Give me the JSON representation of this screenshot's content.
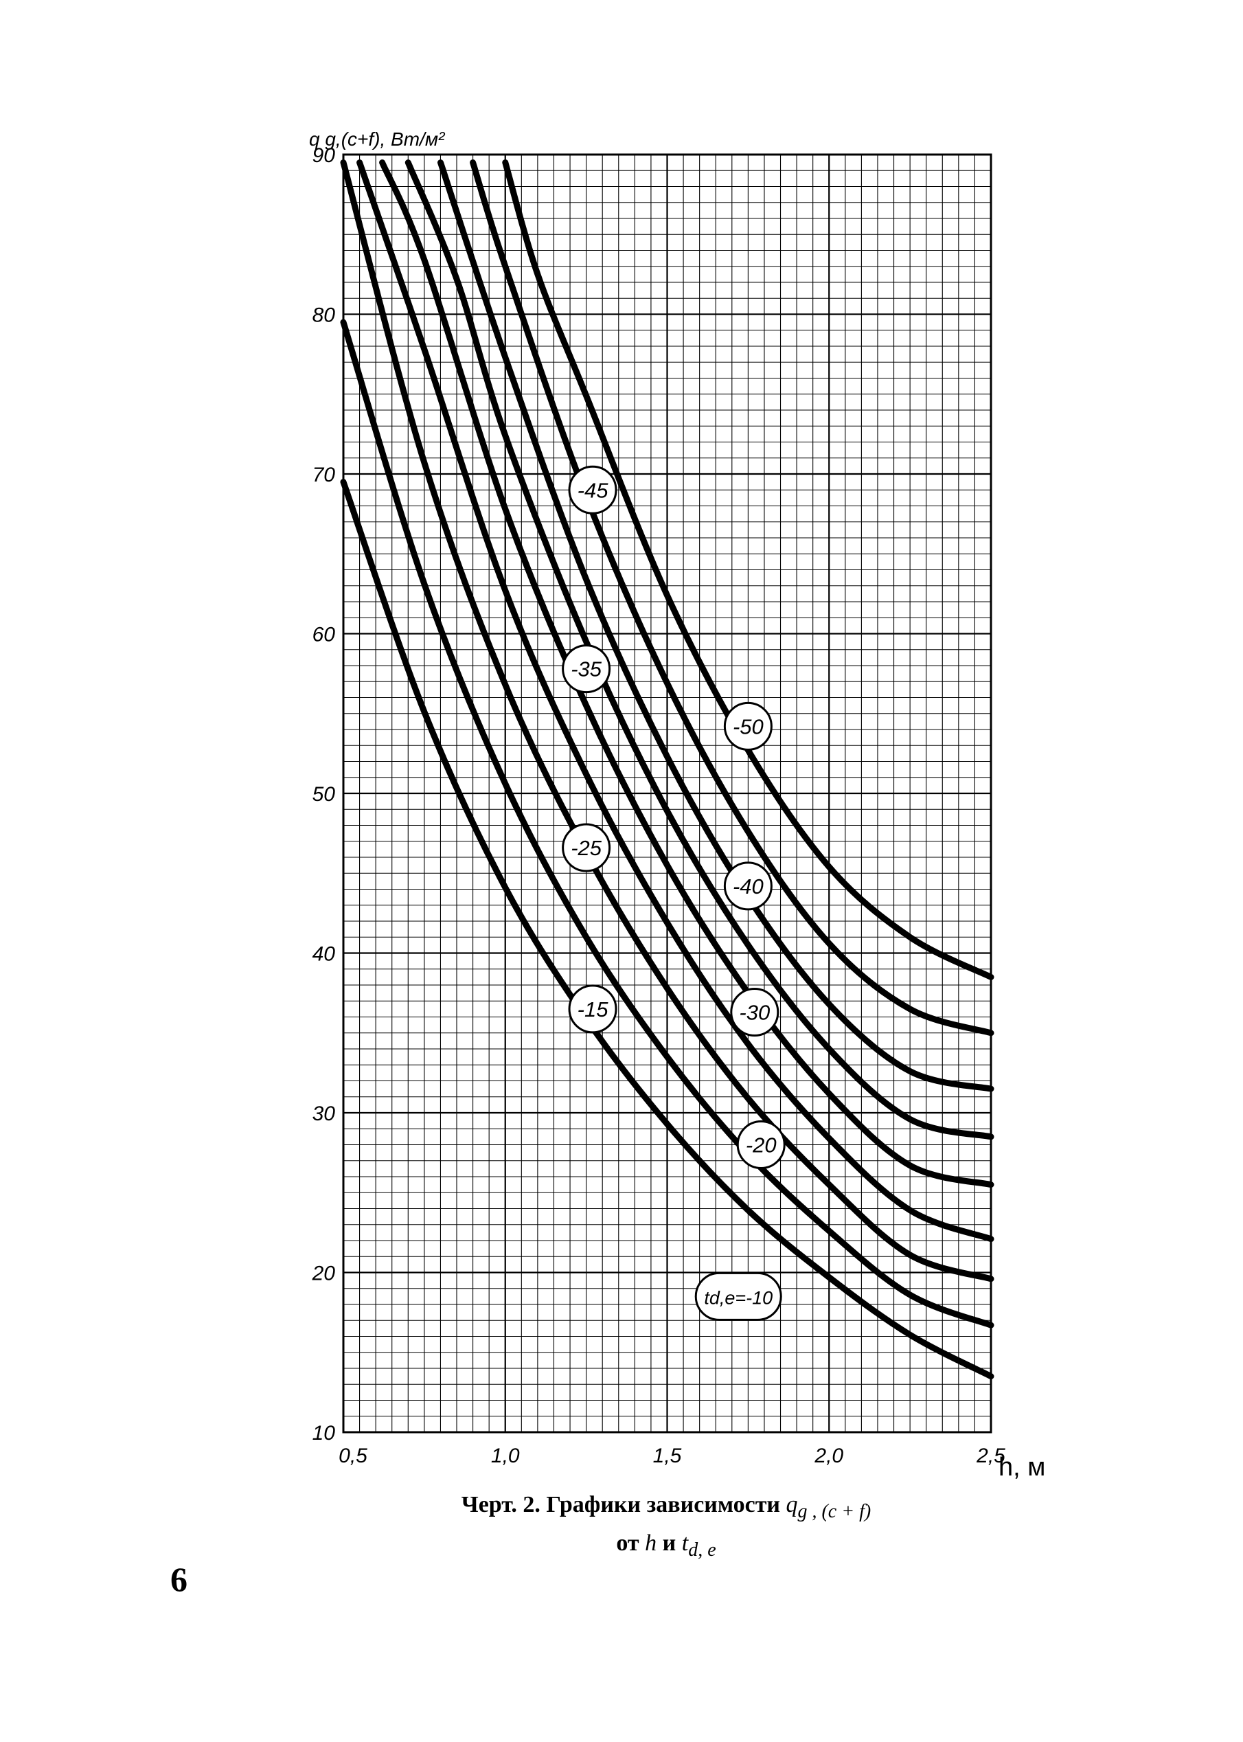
{
  "chart_data": {
    "type": "line",
    "xlabel": "h, м",
    "ylabel": "q g,(c+f), Вт/м²",
    "xlim": [
      0.5,
      2.5
    ],
    "ylim": [
      10,
      90
    ],
    "x_ticks": [
      "0,5",
      "1,0",
      "1,5",
      "2,0",
      "2,5"
    ],
    "y_ticks": [
      "10",
      "20",
      "30",
      "40",
      "50",
      "60",
      "70",
      "80",
      "90"
    ],
    "grid": true,
    "series": [
      {
        "name": "td,e=-10",
        "x": [
          0.5,
          0.75,
          1.0,
          1.25,
          1.5,
          1.75,
          2.0,
          2.25,
          2.5
        ],
        "y": [
          69.5,
          55.1,
          44.1,
          35.9,
          29.3,
          23.9,
          19.7,
          16.1,
          13.5
        ]
      },
      {
        "name": "-15",
        "x": [
          0.5,
          0.75,
          1.0,
          1.25,
          1.5,
          1.75,
          2.0,
          2.25,
          2.5
        ],
        "y": [
          79.5,
          63.1,
          50.6,
          41.0,
          33.5,
          27.4,
          22.6,
          18.6,
          16.7
        ]
      },
      {
        "name": "-20",
        "x": [
          0.5,
          0.75,
          1.0,
          1.25,
          1.5,
          1.75,
          2.0,
          2.25,
          2.5
        ],
        "y": [
          89.5,
          70.7,
          56.8,
          46.3,
          37.8,
          30.9,
          25.5,
          21.1,
          19.6
        ]
      },
      {
        "name": "-25",
        "x": [
          0.55,
          0.75,
          1.0,
          1.25,
          1.5,
          1.75,
          2.0,
          2.25,
          2.5
        ],
        "y": [
          89.5,
          77.8,
          62.7,
          51.2,
          41.9,
          34.3,
          28.4,
          23.9,
          22.1
        ]
      },
      {
        "name": "-30",
        "x": [
          0.62,
          0.75,
          1.0,
          1.25,
          1.5,
          1.75,
          2.0,
          2.25,
          2.5
        ],
        "y": [
          89.5,
          83.4,
          67.8,
          55.5,
          45.5,
          37.5,
          31.2,
          26.7,
          25.5
        ]
      },
      {
        "name": "-35",
        "x": [
          0.7,
          0.85,
          1.0,
          1.25,
          1.5,
          1.75,
          2.0,
          2.25,
          2.5
        ],
        "y": [
          89.5,
          82.2,
          72.4,
          59.5,
          48.9,
          40.5,
          34.0,
          29.6,
          28.5
        ]
      },
      {
        "name": "-40",
        "x": [
          0.8,
          1.0,
          1.25,
          1.5,
          1.75,
          2.0,
          2.25,
          2.5
        ],
        "y": [
          89.5,
          77.3,
          63.4,
          52.3,
          43.5,
          36.8,
          32.6,
          31.5
        ]
      },
      {
        "name": "-45",
        "x": [
          0.9,
          1.0,
          1.25,
          1.5,
          1.75,
          2.0,
          2.25,
          2.5
        ],
        "y": [
          89.5,
          83.0,
          68.6,
          56.9,
          47.6,
          40.6,
          36.5,
          35.0
        ]
      },
      {
        "name": "-50",
        "x": [
          1.0,
          1.1,
          1.25,
          1.5,
          1.75,
          2.0,
          2.25,
          2.5
        ],
        "y": [
          89.5,
          82.5,
          74.9,
          62.4,
          52.7,
          45.4,
          41.0,
          38.5
        ]
      }
    ],
    "curve_labels": [
      {
        "text": "-45",
        "x": 1.27,
        "y": 69.0
      },
      {
        "text": "-35",
        "x": 1.25,
        "y": 57.8
      },
      {
        "text": "-50",
        "x": 1.75,
        "y": 54.2
      },
      {
        "text": "-25",
        "x": 1.25,
        "y": 46.6
      },
      {
        "text": "-40",
        "x": 1.75,
        "y": 44.2
      },
      {
        "text": "-15",
        "x": 1.27,
        "y": 36.5
      },
      {
        "text": "-30",
        "x": 1.77,
        "y": 36.3
      },
      {
        "text": "-20",
        "x": 1.79,
        "y": 28.0
      },
      {
        "text": "td,e=-10",
        "x": 1.72,
        "y": 18.5
      }
    ]
  },
  "caption": {
    "line1_bold": "Черт. 2. Графики зависимости",
    "line1_sym": "q",
    "line1_sub": "g , (c + f)",
    "line2_bold_a": "от",
    "line2_h": "h",
    "line2_bold_b": "и",
    "line2_sym": "t",
    "line2_sub": "d, e"
  },
  "page_number": "6"
}
